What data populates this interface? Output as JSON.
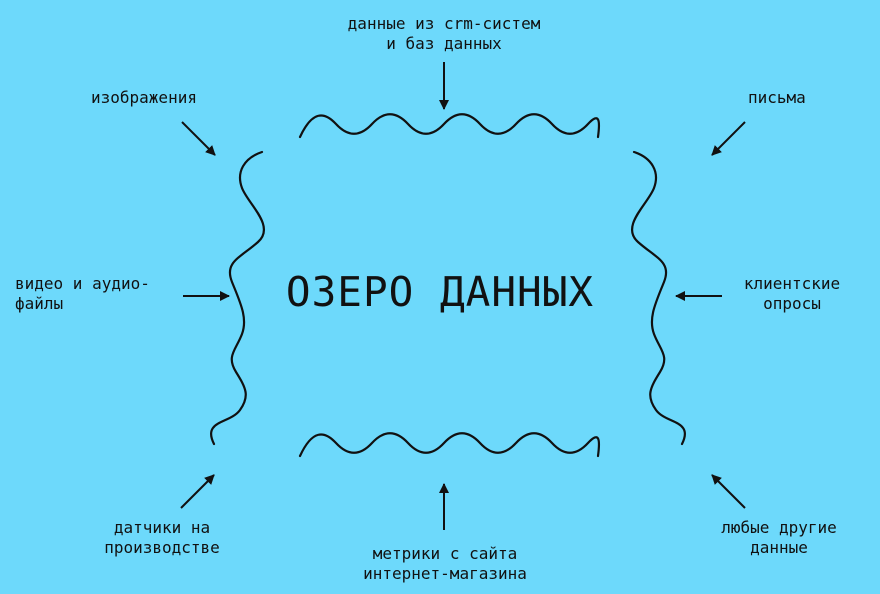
{
  "colors": {
    "background": "#6dd9fb",
    "ink": "#111111"
  },
  "title": "ОЗЕРО ДАННЫХ",
  "sources": {
    "crm": [
      "данные из crm-систем",
      "и баз данных"
    ],
    "images": [
      "изображения"
    ],
    "letters": [
      "письма"
    ],
    "video": [
      "видео и аудио-",
      "файлы"
    ],
    "surveys": [
      "клиентские",
      "опросы"
    ],
    "sensors": [
      "датчики на",
      "производстве"
    ],
    "metrics": [
      "метрики с сайта",
      "интернет-магазина"
    ],
    "other": [
      "любые другие",
      "данные"
    ]
  }
}
